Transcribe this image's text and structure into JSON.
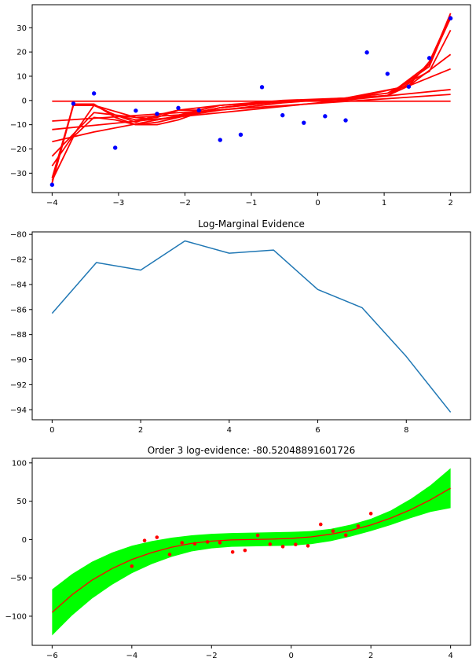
{
  "chart_data": [
    {
      "type": "line",
      "title": "",
      "xlim": [
        -4.3,
        2.3
      ],
      "ylim": [
        -38,
        39.5
      ],
      "x_ticks": [
        -4,
        -3,
        -2,
        -1,
        0,
        1,
        2
      ],
      "y_ticks": [
        -30,
        -20,
        -10,
        0,
        10,
        20,
        30
      ],
      "x_tick_labels": [
        "−4",
        "−3",
        "−2",
        "−1",
        "0",
        "1",
        "2"
      ],
      "y_tick_labels": [
        "−30",
        "−20",
        "−10",
        "0",
        "10",
        "20",
        "30"
      ],
      "grid": false,
      "points": {
        "color": "#0000ff",
        "x": [
          -4.0,
          -3.68,
          -3.37,
          -3.05,
          -2.74,
          -2.42,
          -2.1,
          -1.79,
          -1.47,
          -1.16,
          -0.84,
          -0.53,
          -0.21,
          0.11,
          0.42,
          0.74,
          1.05,
          1.37,
          1.68,
          2.0
        ],
        "y": [
          -34.8,
          -1.3,
          2.9,
          -19.5,
          -4.2,
          -5.5,
          -3.1,
          -4.1,
          -16.3,
          -14.1,
          5.5,
          -6.1,
          -9.2,
          -6.5,
          -8.2,
          19.8,
          11.0,
          5.7,
          17.5,
          33.9
        ]
      },
      "series": [
        {
          "color": "#ff0000",
          "x": [
            -4,
            2
          ],
          "y": [
            -0.3,
            -0.3
          ]
        },
        {
          "color": "#ff0000",
          "x": [
            -4,
            2
          ],
          "y": [
            -8.5,
            2.5
          ]
        },
        {
          "color": "#ff0000",
          "x": [
            -4,
            2
          ],
          "y": [
            -12,
            4.5
          ]
        },
        {
          "color": "#ff0000",
          "x": [
            -4,
            -3.37,
            -2.42,
            -1.47,
            -0.53,
            0.42,
            1.37,
            2.0
          ],
          "y": [
            -17,
            -13,
            -8,
            -4,
            -1,
            1,
            6,
            13
          ]
        },
        {
          "color": "#ff0000",
          "x": [
            -4,
            -3.37,
            -2.42,
            -1.47,
            -0.53,
            0.42,
            1.37,
            2.0
          ],
          "y": [
            -23,
            -5,
            -8,
            -3,
            -0.5,
            0.5,
            6,
            19
          ]
        },
        {
          "color": "#ff0000",
          "x": [
            -4,
            -3.37,
            -2.74,
            -2.1,
            -1.47,
            -0.53,
            0.42,
            1.05,
            1.68,
            2.0
          ],
          "y": [
            -27,
            -2,
            -7,
            -6,
            -2,
            0,
            1,
            3,
            12,
            29
          ]
        },
        {
          "color": "#ff0000",
          "x": [
            -4,
            -3.68,
            -3.37,
            -3.05,
            -2.74,
            -2.42,
            -2.1,
            -1.47,
            -0.53,
            0.42,
            1.05,
            1.68,
            2.0
          ],
          "y": [
            -33,
            -15,
            -7,
            -8,
            -10,
            -9,
            -7,
            -3,
            -0.5,
            0.5,
            2,
            14,
            35
          ]
        },
        {
          "color": "#ff0000",
          "x": [
            -4,
            -3.68,
            -3.37,
            -3.05,
            -2.74,
            -2.42,
            -2.1,
            -1.47,
            -0.53,
            0.42,
            1.05,
            1.68,
            2.0
          ],
          "y": [
            -32,
            -2,
            -2,
            -6,
            -8,
            -7,
            -4,
            -2,
            -0.5,
            0.5,
            2,
            15,
            36
          ]
        },
        {
          "color": "#ff0000",
          "x": [
            -4,
            -3.68,
            -3.37,
            -3.05,
            -2.74,
            -2.42,
            -2.1,
            -1.79,
            -1.47,
            -0.84,
            -0.21,
            0.42,
            1.05,
            1.37,
            1.68,
            2.0
          ],
          "y": [
            -34,
            -2,
            -2,
            -6,
            -9,
            -6,
            -4,
            -4,
            -2,
            -1,
            0,
            1,
            2,
            6,
            16,
            35
          ]
        },
        {
          "color": "#ff0000",
          "x": [
            -4,
            -3.68,
            -3.37,
            -3.05,
            -2.74,
            -2.42,
            -2.1,
            -1.79,
            -1.47,
            -0.84,
            -0.21,
            0.42,
            1.05,
            1.37,
            1.68,
            2.0
          ],
          "y": [
            -34,
            -1.5,
            -1.5,
            -7,
            -10,
            -10,
            -8,
            -5,
            -3,
            -1,
            0,
            1,
            2,
            7,
            15,
            34
          ]
        }
      ]
    },
    {
      "type": "line",
      "title": "Log-Marginal Evidence",
      "xlim": [
        -0.45,
        9.45
      ],
      "ylim": [
        -94.8,
        -79.8
      ],
      "x_ticks": [
        0,
        2,
        4,
        6,
        8
      ],
      "y_ticks": [
        -94,
        -92,
        -90,
        -88,
        -86,
        -84,
        -82,
        -80
      ],
      "x_tick_labels": [
        "0",
        "2",
        "4",
        "6",
        "8"
      ],
      "y_tick_labels": [
        "−94",
        "−92",
        "−90",
        "−88",
        "−86",
        "−84",
        "−82",
        "−80"
      ],
      "grid": false,
      "series": [
        {
          "color": "#1f77b4",
          "x": [
            0,
            1,
            2,
            3,
            4,
            5,
            6,
            7,
            8,
            9
          ],
          "y": [
            -86.3,
            -82.25,
            -82.85,
            -80.52,
            -81.5,
            -81.25,
            -84.4,
            -85.85,
            -89.75,
            -94.2
          ]
        }
      ]
    },
    {
      "type": "area",
      "title": "Order 3 log-evidence: -80.52048891601726",
      "xlim": [
        -6.5,
        4.5
      ],
      "ylim": [
        -138,
        106
      ],
      "x_ticks": [
        -6,
        -4,
        -2,
        0,
        2,
        4
      ],
      "y_ticks": [
        -100,
        -50,
        0,
        50,
        100
      ],
      "x_tick_labels": [
        "−6",
        "−4",
        "−2",
        "0",
        "2",
        "4"
      ],
      "y_tick_labels": [
        "−100",
        "−50",
        "0",
        "50",
        "100"
      ],
      "grid": false,
      "fill_color": "#00ff00",
      "line_color": "#ff0000",
      "point_color": "#ff0000",
      "curve": {
        "x": [
          -6,
          -5.5,
          -5,
          -4.5,
          -4,
          -3.5,
          -3,
          -2.5,
          -2,
          -1.5,
          -1,
          -0.5,
          0,
          0.5,
          1,
          1.5,
          2,
          2.5,
          3,
          3.5,
          4
        ],
        "y": [
          -95,
          -72,
          -53,
          -38,
          -26,
          -17,
          -10,
          -5,
          -2,
          -0.5,
          0,
          0.5,
          1.5,
          3.5,
          7,
          12,
          19,
          28,
          39,
          52,
          67
        ]
      },
      "band_upper": [
        -65,
        -45,
        -29,
        -17,
        -8,
        -2,
        2.5,
        5.5,
        7.5,
        8.5,
        9,
        9.5,
        10,
        11,
        14,
        19.5,
        27,
        38,
        53,
        71,
        93
      ],
      "band_lower": [
        -125,
        -99,
        -77,
        -59,
        -44,
        -32,
        -22.5,
        -15.5,
        -11.5,
        -9.5,
        -9,
        -8.5,
        -8,
        -6,
        -2,
        4,
        11,
        19,
        28,
        36,
        41
      ],
      "points": {
        "x": [
          -4.0,
          -3.68,
          -3.37,
          -3.05,
          -2.74,
          -2.42,
          -2.1,
          -1.79,
          -1.47,
          -1.16,
          -0.84,
          -0.53,
          -0.21,
          0.11,
          0.42,
          0.74,
          1.05,
          1.37,
          1.68,
          2.0
        ],
        "y": [
          -34.8,
          -1.3,
          2.9,
          -19.5,
          -4.2,
          -5.5,
          -3.1,
          -4.1,
          -16.3,
          -14.1,
          5.5,
          -6.1,
          -9.2,
          -6.5,
          -8.2,
          19.8,
          11.0,
          5.7,
          17.5,
          33.9
        ]
      }
    }
  ]
}
